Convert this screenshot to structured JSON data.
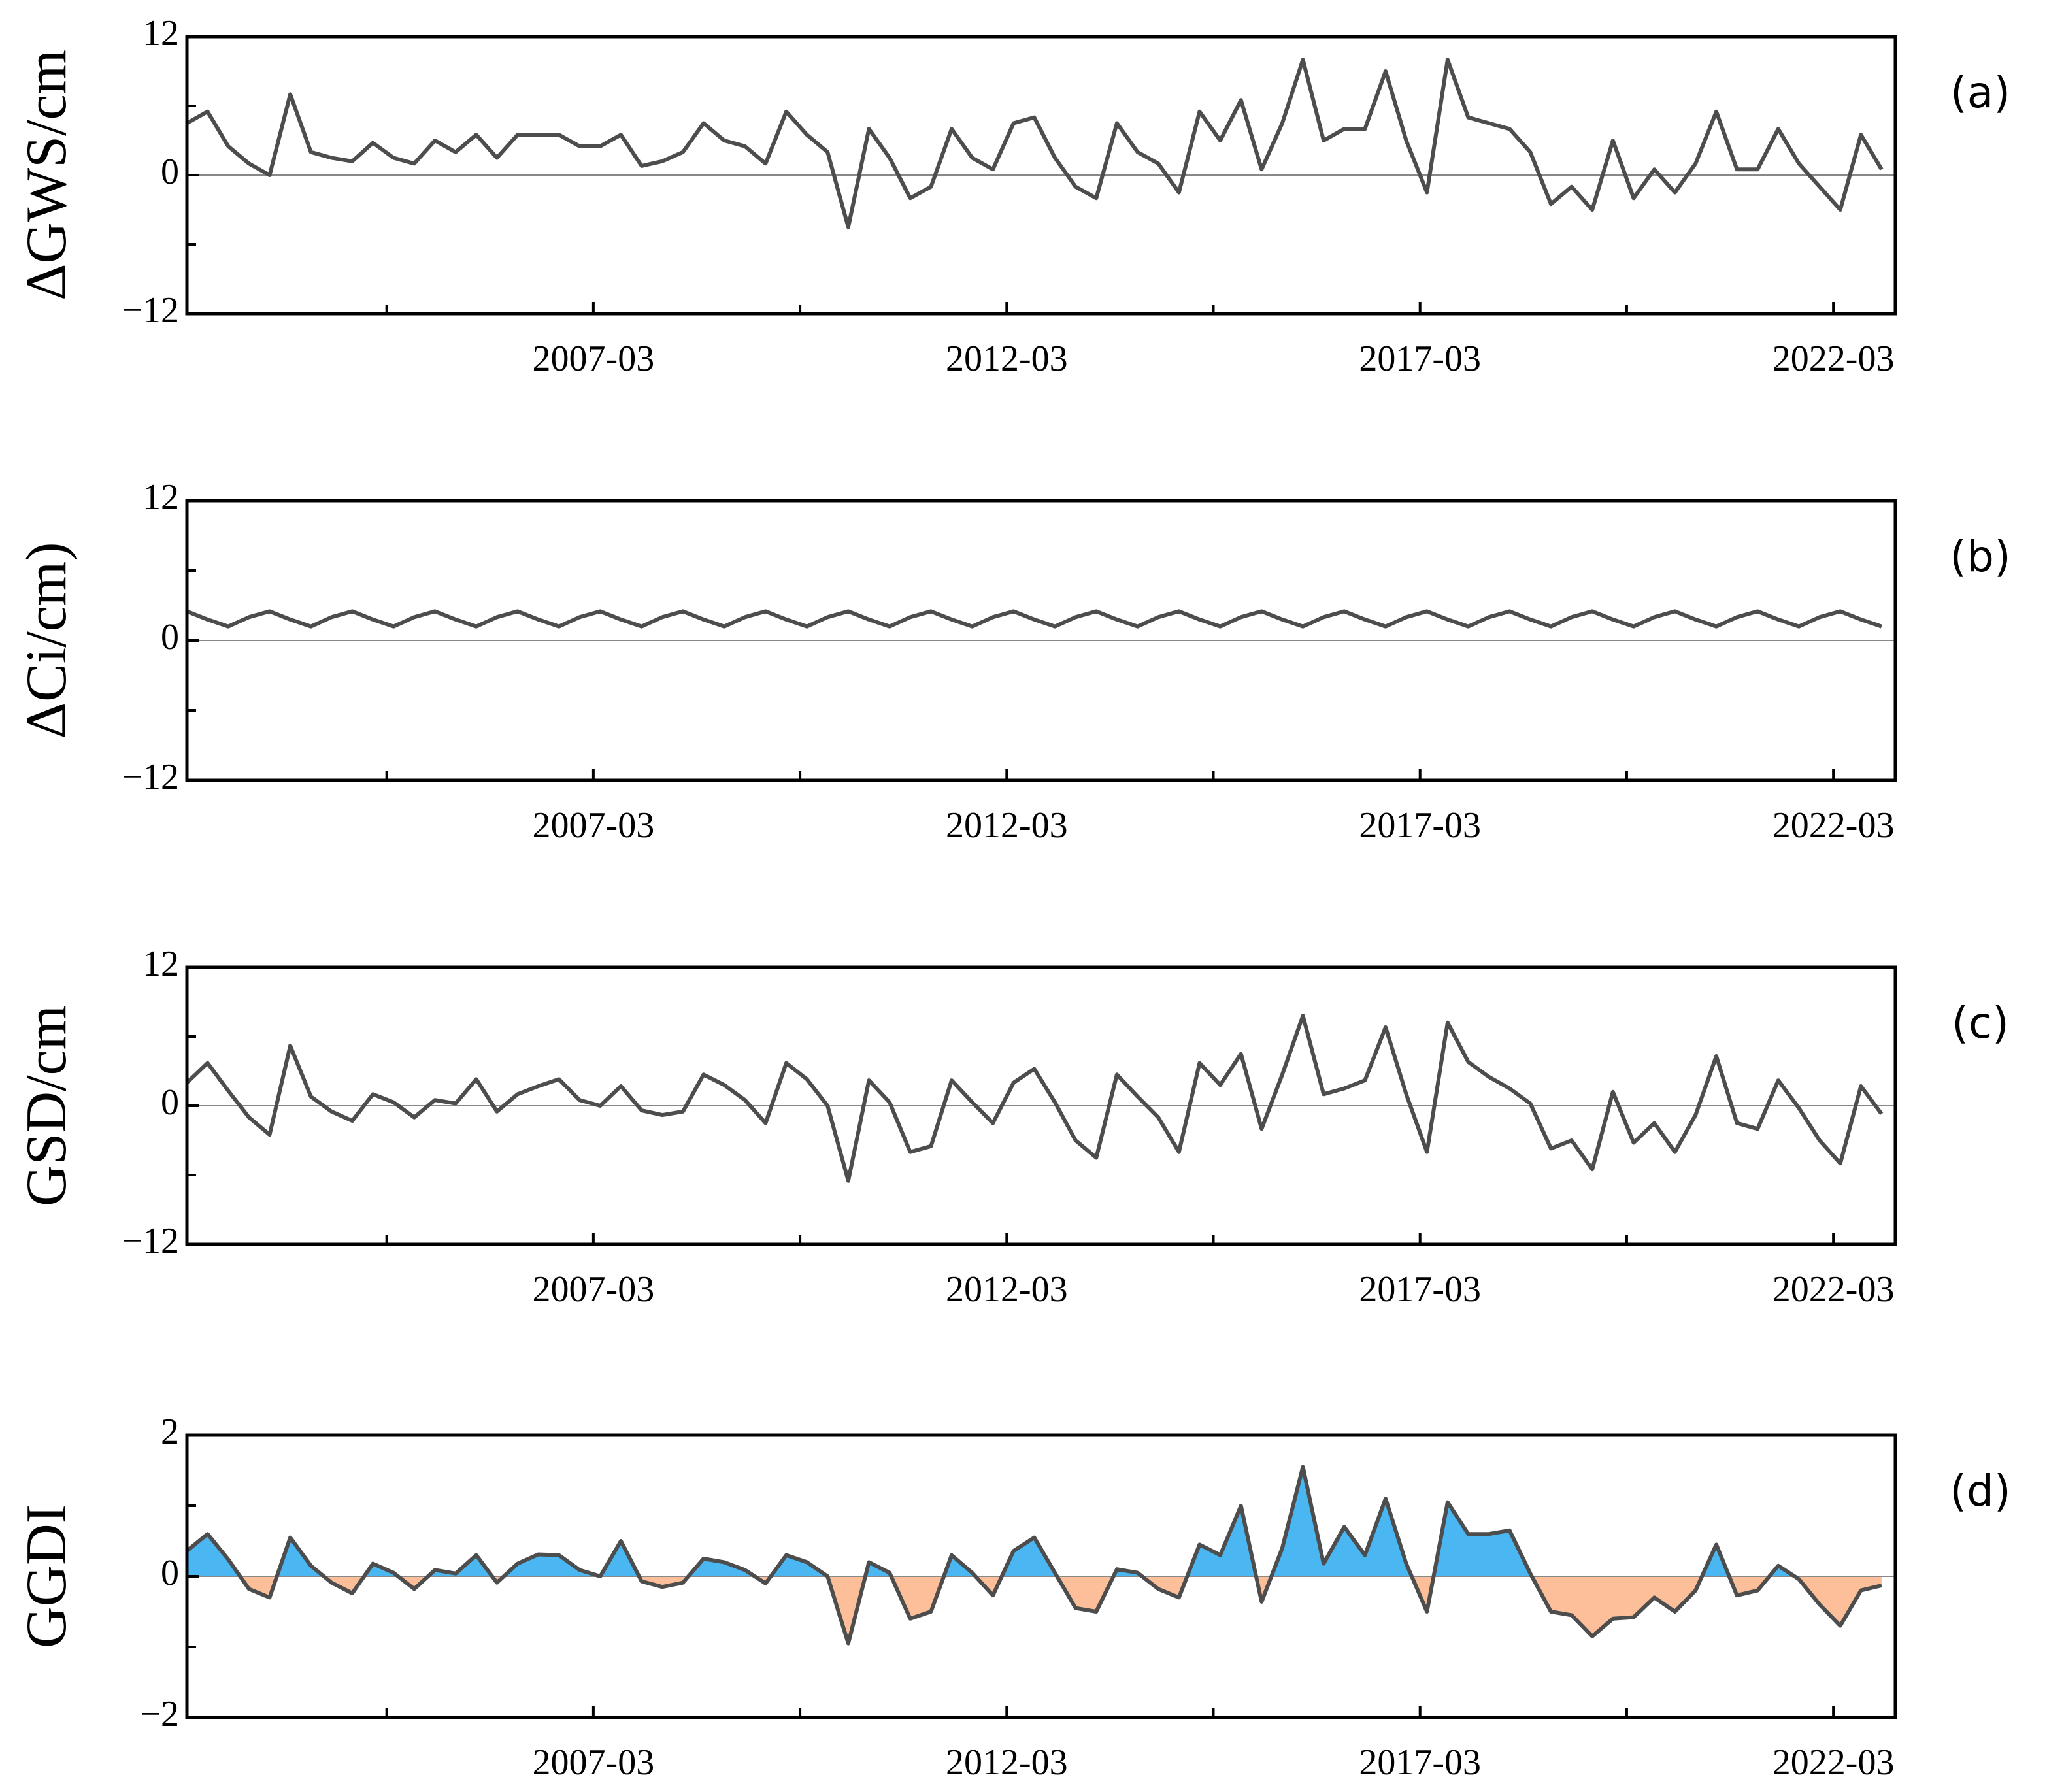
{
  "chart_data": [
    {
      "type": "line",
      "panel_label": "(a)",
      "ylabel": "ΔGWS/cm",
      "color": "#4d4d4d",
      "baseline": 0,
      "xlim": [
        "2002-04",
        "2022-12"
      ],
      "xticks": [
        "2007-03",
        "2012-03",
        "2017-03",
        "2022-03"
      ],
      "xminorticks": [
        "2004-09",
        "2009-09",
        "2014-09",
        "2019-09"
      ],
      "ylim": [
        -12,
        12
      ],
      "yticks": [
        {
          "value": -12,
          "label": "−12"
        },
        0,
        12
      ],
      "yminorticks": [
        -6,
        6
      ],
      "x": [
        "2002-04",
        "2002-07",
        "2002-10",
        "2003-01",
        "2003-04",
        "2003-07",
        "2003-10",
        "2004-01",
        "2004-04",
        "2004-07",
        "2004-10",
        "2005-01",
        "2005-04",
        "2005-07",
        "2005-10",
        "2006-01",
        "2006-04",
        "2006-07",
        "2006-10",
        "2007-01",
        "2007-04",
        "2007-07",
        "2007-10",
        "2008-01",
        "2008-04",
        "2008-07",
        "2008-10",
        "2009-01",
        "2009-04",
        "2009-07",
        "2009-10",
        "2010-01",
        "2010-04",
        "2010-07",
        "2010-10",
        "2011-01",
        "2011-04",
        "2011-07",
        "2011-10",
        "2012-01",
        "2012-04",
        "2012-07",
        "2012-10",
        "2013-01",
        "2013-04",
        "2013-07",
        "2013-10",
        "2014-01",
        "2014-04",
        "2014-07",
        "2014-10",
        "2015-01",
        "2015-04",
        "2015-07",
        "2015-10",
        "2016-01",
        "2016-04",
        "2016-07",
        "2016-10",
        "2017-01",
        "2017-04",
        "2017-07",
        "2017-10",
        "2018-01",
        "2018-04",
        "2018-07",
        "2018-10",
        "2019-01",
        "2019-04",
        "2019-07",
        "2019-10",
        "2020-01",
        "2020-04",
        "2020-07",
        "2020-10",
        "2021-01",
        "2021-04",
        "2021-07",
        "2021-10",
        "2022-01",
        "2022-04",
        "2022-07",
        "2022-10"
      ],
      "values": [
        4.5,
        5.5,
        2.5,
        1,
        0,
        7,
        2,
        1.5,
        1.2,
        2.8,
        1.5,
        1,
        3,
        2,
        3.5,
        1.5,
        3.5,
        3.5,
        3.5,
        2.5,
        2.5,
        3.5,
        0.8,
        1.2,
        2,
        4.5,
        3,
        2.5,
        1,
        5.5,
        3.5,
        2,
        -4.5,
        4,
        1.5,
        -2,
        -1,
        4,
        1.5,
        0.5,
        4.5,
        5,
        1.5,
        -1,
        -2,
        4.5,
        2,
        1,
        -1.5,
        5.5,
        3,
        6.5,
        0.5,
        4.5,
        10,
        3,
        4,
        4,
        9,
        3,
        -1.5,
        10,
        5,
        4.5,
        4,
        2,
        -2.5,
        -1,
        -3,
        3,
        -2,
        0.5,
        -1.5,
        1,
        5.5,
        0.5,
        0.5,
        4,
        1,
        -1,
        -3,
        3.5,
        0.5
      ]
    },
    {
      "type": "line",
      "panel_label": "(b)",
      "ylabel": "ΔCi/cm)",
      "color": "#4d4d4d",
      "baseline": 0,
      "xlim": [
        "2002-04",
        "2022-12"
      ],
      "xticks": [
        "2007-03",
        "2012-03",
        "2017-03",
        "2022-03"
      ],
      "xminorticks": [
        "2004-09",
        "2009-09",
        "2014-09",
        "2019-09"
      ],
      "ylim": [
        -12,
        12
      ],
      "yticks": [
        {
          "value": -12,
          "label": "−12"
        },
        0,
        12
      ],
      "yminorticks": [
        -6,
        6
      ],
      "x": [
        "2002-04",
        "2002-07",
        "2002-10",
        "2003-01",
        "2003-04",
        "2003-07",
        "2003-10",
        "2004-01",
        "2004-04",
        "2004-07",
        "2004-10",
        "2005-01",
        "2005-04",
        "2005-07",
        "2005-10",
        "2006-01",
        "2006-04",
        "2006-07",
        "2006-10",
        "2007-01",
        "2007-04",
        "2007-07",
        "2007-10",
        "2008-01",
        "2008-04",
        "2008-07",
        "2008-10",
        "2009-01",
        "2009-04",
        "2009-07",
        "2009-10",
        "2010-01",
        "2010-04",
        "2010-07",
        "2010-10",
        "2011-01",
        "2011-04",
        "2011-07",
        "2011-10",
        "2012-01",
        "2012-04",
        "2012-07",
        "2012-10",
        "2013-01",
        "2013-04",
        "2013-07",
        "2013-10",
        "2014-01",
        "2014-04",
        "2014-07",
        "2014-10",
        "2015-01",
        "2015-04",
        "2015-07",
        "2015-10",
        "2016-01",
        "2016-04",
        "2016-07",
        "2016-10",
        "2017-01",
        "2017-04",
        "2017-07",
        "2017-10",
        "2018-01",
        "2018-04",
        "2018-07",
        "2018-10",
        "2019-01",
        "2019-04",
        "2019-07",
        "2019-10",
        "2020-01",
        "2020-04",
        "2020-07",
        "2020-10",
        "2021-01",
        "2021-04",
        "2021-07",
        "2021-10",
        "2022-01",
        "2022-04",
        "2022-07",
        "2022-10"
      ],
      "values": [
        2.5,
        1.8,
        1.2,
        2,
        2.5,
        1.8,
        1.2,
        2,
        2.5,
        1.8,
        1.2,
        2,
        2.5,
        1.8,
        1.2,
        2,
        2.5,
        1.8,
        1.2,
        2,
        2.5,
        1.8,
        1.2,
        2,
        2.5,
        1.8,
        1.2,
        2,
        2.5,
        1.8,
        1.2,
        2,
        2.5,
        1.8,
        1.2,
        2,
        2.5,
        1.8,
        1.2,
        2,
        2.5,
        1.8,
        1.2,
        2,
        2.5,
        1.8,
        1.2,
        2,
        2.5,
        1.8,
        1.2,
        2,
        2.5,
        1.8,
        1.2,
        2,
        2.5,
        1.8,
        1.2,
        2,
        2.5,
        1.8,
        1.2,
        2,
        2.5,
        1.8,
        1.2,
        2,
        2.5,
        1.8,
        1.2,
        2,
        2.5,
        1.8,
        1.2,
        2,
        2.5,
        1.8,
        1.2,
        2,
        2.5,
        1.8,
        1.2
      ]
    },
    {
      "type": "line",
      "panel_label": "(c)",
      "ylabel": "GSD/cm",
      "color": "#4d4d4d",
      "baseline": 0,
      "xlim": [
        "2002-04",
        "2022-12"
      ],
      "xticks": [
        "2007-03",
        "2012-03",
        "2017-03",
        "2022-03"
      ],
      "xminorticks": [
        "2004-09",
        "2009-09",
        "2014-09",
        "2019-09"
      ],
      "ylim": [
        -12,
        12
      ],
      "yticks": [
        {
          "value": -12,
          "label": "−12"
        },
        0,
        12
      ],
      "yminorticks": [
        -6,
        6
      ],
      "x": [
        "2002-04",
        "2002-07",
        "2002-10",
        "2003-01",
        "2003-04",
        "2003-07",
        "2003-10",
        "2004-01",
        "2004-04",
        "2004-07",
        "2004-10",
        "2005-01",
        "2005-04",
        "2005-07",
        "2005-10",
        "2006-01",
        "2006-04",
        "2006-07",
        "2006-10",
        "2007-01",
        "2007-04",
        "2007-07",
        "2007-10",
        "2008-01",
        "2008-04",
        "2008-07",
        "2008-10",
        "2009-01",
        "2009-04",
        "2009-07",
        "2009-10",
        "2010-01",
        "2010-04",
        "2010-07",
        "2010-10",
        "2011-01",
        "2011-04",
        "2011-07",
        "2011-10",
        "2012-01",
        "2012-04",
        "2012-07",
        "2012-10",
        "2013-01",
        "2013-04",
        "2013-07",
        "2013-10",
        "2014-01",
        "2014-04",
        "2014-07",
        "2014-10",
        "2015-01",
        "2015-04",
        "2015-07",
        "2015-10",
        "2016-01",
        "2016-04",
        "2016-07",
        "2016-10",
        "2017-01",
        "2017-04",
        "2017-07",
        "2017-10",
        "2018-01",
        "2018-04",
        "2018-07",
        "2018-10",
        "2019-01",
        "2019-04",
        "2019-07",
        "2019-10",
        "2020-01",
        "2020-04",
        "2020-07",
        "2020-10",
        "2021-01",
        "2021-04",
        "2021-07",
        "2021-10",
        "2022-01",
        "2022-04",
        "2022-07",
        "2022-10"
      ],
      "values": [
        2,
        3.7,
        1.3,
        -1,
        -2.5,
        5.2,
        0.8,
        -0.5,
        -1.3,
        1,
        0.3,
        -1,
        0.5,
        0.2,
        2.3,
        -0.5,
        1,
        1.7,
        2.3,
        0.5,
        0,
        1.7,
        -0.4,
        -0.8,
        -0.5,
        2.7,
        1.8,
        0.5,
        -1.5,
        3.7,
        2.3,
        0,
        -6.5,
        2.2,
        0.3,
        -4,
        -3.5,
        2.2,
        0.3,
        -1.5,
        2,
        3.2,
        0.3,
        -3,
        -4.5,
        2.7,
        0.8,
        -1,
        -4,
        3.7,
        1.8,
        4.5,
        -2,
        2.7,
        7.8,
        1,
        1.5,
        2.2,
        6.8,
        1,
        -4,
        7.2,
        3.8,
        2.5,
        1.5,
        0.2,
        -3.7,
        -3,
        -5.5,
        1.2,
        -3.2,
        -1.5,
        -4,
        -0.8,
        4.3,
        -1.5,
        -2,
        2.2,
        -0.2,
        -3,
        -5,
        1.7,
        -0.7
      ]
    },
    {
      "type": "area",
      "panel_label": "(d)",
      "ylabel": "GGDI",
      "color": "#4d4d4d",
      "positive_color": "#4ab7f3",
      "negative_color": "#fdbf99",
      "baseline": 0,
      "xlim": [
        "2002-04",
        "2022-12"
      ],
      "xticks": [
        "2007-03",
        "2012-03",
        "2017-03",
        "2022-03"
      ],
      "xminorticks": [
        "2004-09",
        "2009-09",
        "2014-09",
        "2019-09"
      ],
      "ylim": [
        -2,
        2
      ],
      "yticks": [
        {
          "value": -2,
          "label": "−2"
        },
        0,
        2
      ],
      "yminorticks": [
        -1,
        1
      ],
      "x": [
        "2002-04",
        "2002-07",
        "2002-10",
        "2003-01",
        "2003-04",
        "2003-07",
        "2003-10",
        "2004-01",
        "2004-04",
        "2004-07",
        "2004-10",
        "2005-01",
        "2005-04",
        "2005-07",
        "2005-10",
        "2006-01",
        "2006-04",
        "2006-07",
        "2006-10",
        "2007-01",
        "2007-04",
        "2007-07",
        "2007-10",
        "2008-01",
        "2008-04",
        "2008-07",
        "2008-10",
        "2009-01",
        "2009-04",
        "2009-07",
        "2009-10",
        "2010-01",
        "2010-04",
        "2010-07",
        "2010-10",
        "2011-01",
        "2011-04",
        "2011-07",
        "2011-10",
        "2012-01",
        "2012-04",
        "2012-07",
        "2012-10",
        "2013-01",
        "2013-04",
        "2013-07",
        "2013-10",
        "2014-01",
        "2014-04",
        "2014-07",
        "2014-10",
        "2015-01",
        "2015-04",
        "2015-07",
        "2015-10",
        "2016-01",
        "2016-04",
        "2016-07",
        "2016-10",
        "2017-01",
        "2017-04",
        "2017-07",
        "2017-10",
        "2018-01",
        "2018-04",
        "2018-07",
        "2018-10",
        "2019-01",
        "2019-04",
        "2019-07",
        "2019-10",
        "2020-01",
        "2020-04",
        "2020-07",
        "2020-10",
        "2021-01",
        "2021-04",
        "2021-07",
        "2021-10",
        "2022-01",
        "2022-04",
        "2022-07",
        "2022-10"
      ],
      "values": [
        0.36,
        0.6,
        0.24,
        -0.18,
        -0.3,
        0.55,
        0.15,
        -0.09,
        -0.24,
        0.18,
        0.05,
        -0.18,
        0.09,
        0.04,
        0.3,
        -0.09,
        0.18,
        0.31,
        0.3,
        0.09,
        0,
        0.5,
        -0.07,
        -0.15,
        -0.09,
        0.25,
        0.2,
        0.09,
        -0.1,
        0.3,
        0.2,
        0,
        -0.95,
        0.2,
        0.05,
        -0.6,
        -0.5,
        0.3,
        0.05,
        -0.27,
        0.36,
        0.55,
        0.05,
        -0.45,
        -0.5,
        0.1,
        0.05,
        -0.18,
        -0.3,
        0.45,
        0.3,
        1,
        -0.36,
        0.4,
        1.55,
        0.18,
        0.7,
        0.3,
        1.1,
        0.18,
        -0.5,
        1.05,
        0.6,
        0.6,
        0.65,
        0.04,
        -0.5,
        -0.55,
        -0.85,
        -0.6,
        -0.58,
        -0.3,
        -0.5,
        -0.2,
        0.45,
        -0.27,
        -0.2,
        0.15,
        -0.04,
        -0.4,
        -0.7,
        -0.2,
        -0.13
      ]
    }
  ]
}
